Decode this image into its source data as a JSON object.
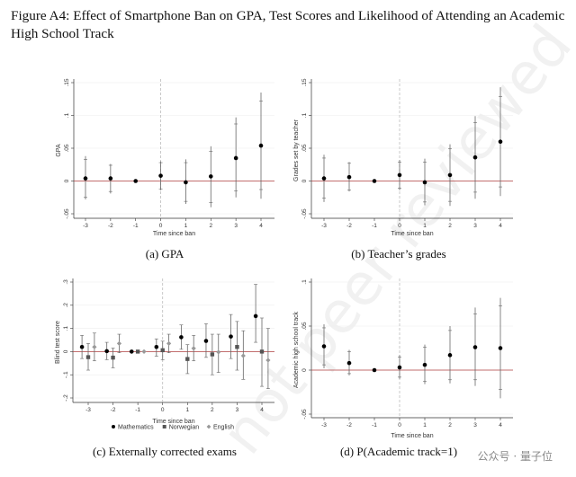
{
  "figure_title": "Figure A4: Effect of Smartphone Ban on GPA, Test Scores and Likelihood of Attending an Academic High School Track",
  "watermark": "not peer reviewed",
  "logo": "公众号 · 量子位",
  "colors": {
    "zero_line": "#b04040",
    "vline": "#bbbbbb",
    "ci": "#666666",
    "point": "#000000"
  },
  "chart_data": [
    {
      "type": "scatter",
      "id": "a",
      "caption": "(a) GPA",
      "ylabel": "GPA",
      "xlabel": "Time since ban",
      "x": [
        -3,
        -2,
        -1,
        0,
        1,
        2,
        3,
        4
      ],
      "xticks": [
        "-3",
        "-2",
        "-1",
        "0",
        "1",
        "2",
        "3",
        "4"
      ],
      "ylim": [
        -0.05,
        0.15
      ],
      "yticks": [
        -0.05,
        0,
        0.05,
        0.1,
        0.15
      ],
      "ytick_labels": [
        "-.05",
        "0",
        ".05",
        ".1",
        ".15"
      ],
      "series": [
        {
          "name": "GPA",
          "marker": "circle",
          "color": "#000000",
          "values": [
            0.004,
            0.004,
            0,
            0.008,
            -0.002,
            0.007,
            0.035,
            0.054
          ],
          "ci95": [
            [
              -0.028,
              0.038
            ],
            [
              -0.019,
              0.026
            ],
            [
              0,
              0
            ],
            [
              -0.014,
              0.03
            ],
            [
              -0.035,
              0.033
            ],
            [
              -0.04,
              0.053
            ],
            [
              -0.025,
              0.097
            ],
            [
              -0.027,
              0.135
            ]
          ],
          "ci90": [
            [
              -0.025,
              0.033
            ],
            [
              -0.016,
              0.024
            ],
            [
              0,
              0
            ],
            [
              -0.012,
              0.028
            ],
            [
              -0.031,
              0.028
            ],
            [
              -0.033,
              0.045
            ],
            [
              -0.015,
              0.087
            ],
            [
              -0.013,
              0.122
            ]
          ]
        }
      ]
    },
    {
      "type": "scatter",
      "id": "b",
      "caption": "(b) Teacher’s grades",
      "ylabel": "Grades set by teacher",
      "xlabel": "Time since ban",
      "x": [
        -3,
        -2,
        -1,
        0,
        1,
        2,
        3,
        4
      ],
      "xticks": [
        "-3",
        "-2",
        "-1",
        "0",
        "1",
        "2",
        "3",
        "4"
      ],
      "ylim": [
        -0.05,
        0.15
      ],
      "yticks": [
        -0.05,
        0,
        0.05,
        0.1,
        0.15
      ],
      "ytick_labels": [
        "-.05",
        "0",
        ".05",
        ".1",
        ".15"
      ],
      "series": [
        {
          "name": "Grades set by teacher",
          "marker": "circle",
          "color": "#000000",
          "values": [
            0.004,
            0.006,
            0,
            0.009,
            -0.002,
            0.009,
            0.036,
            0.06
          ],
          "ci95": [
            [
              -0.032,
              0.04
            ],
            [
              -0.016,
              0.029
            ],
            [
              0,
              0
            ],
            [
              -0.014,
              0.032
            ],
            [
              -0.037,
              0.034
            ],
            [
              -0.038,
              0.056
            ],
            [
              -0.027,
              0.099
            ],
            [
              -0.023,
              0.143
            ]
          ],
          "ci90": [
            [
              -0.026,
              0.035
            ],
            [
              -0.014,
              0.027
            ],
            [
              0,
              0
            ],
            [
              -0.011,
              0.029
            ],
            [
              -0.032,
              0.029
            ],
            [
              -0.031,
              0.049
            ],
            [
              -0.017,
              0.089
            ],
            [
              -0.009,
              0.129
            ]
          ]
        }
      ]
    },
    {
      "type": "scatter",
      "id": "c",
      "caption": "(c) Externally corrected exams",
      "ylabel": "Blind test score",
      "xlabel": "Time since ban",
      "x": [
        -3,
        -2,
        -1,
        0,
        1,
        2,
        3,
        4
      ],
      "xticks": [
        "-3",
        "-2",
        "-1",
        "0",
        "1",
        "2",
        "3",
        "4"
      ],
      "ylim": [
        -0.2,
        0.3
      ],
      "yticks": [
        -0.2,
        -0.1,
        0,
        0.1,
        0.2,
        0.3
      ],
      "ytick_labels": [
        "-.2",
        "-.1",
        "0",
        ".1",
        ".2",
        ".3"
      ],
      "legend": "bottom",
      "series": [
        {
          "name": "Mathematics",
          "marker": "circle",
          "color": "#000000",
          "offset": -0.25,
          "values": [
            0.02,
            0.002,
            0,
            0.02,
            0.062,
            0.046,
            0.065,
            0.153
          ],
          "ci95": [
            [
              -0.03,
              0.07
            ],
            [
              -0.035,
              0.04
            ],
            [
              0,
              0
            ],
            [
              -0.02,
              0.055
            ],
            [
              0.01,
              0.115
            ],
            [
              -0.025,
              0.12
            ],
            [
              -0.03,
              0.16
            ],
            [
              0.04,
              0.29
            ]
          ]
        },
        {
          "name": "Norwegian",
          "marker": "square",
          "color": "#555555",
          "offset": 0,
          "values": [
            -0.024,
            -0.026,
            0,
            0.006,
            -0.032,
            -0.012,
            0.02,
            0
          ],
          "ci95": [
            [
              -0.08,
              0.035
            ],
            [
              -0.07,
              0.015
            ],
            [
              0,
              0
            ],
            [
              -0.035,
              0.045
            ],
            [
              -0.095,
              0.03
            ],
            [
              -0.1,
              0.075
            ],
            [
              -0.08,
              0.13
            ],
            [
              -0.15,
              0.145
            ]
          ]
        },
        {
          "name": "English",
          "marker": "diamond",
          "color": "#999999",
          "offset": 0.25,
          "values": [
            0.02,
            0.035,
            0,
            0.035,
            0.014,
            -0.002,
            -0.018,
            -0.037
          ],
          "ci95": [
            [
              -0.04,
              0.08
            ],
            [
              -0.005,
              0.075
            ],
            [
              0,
              0
            ],
            [
              -0.005,
              0.075
            ],
            [
              -0.04,
              0.07
            ],
            [
              -0.09,
              0.075
            ],
            [
              -0.12,
              0.09
            ],
            [
              -0.16,
              0.1
            ]
          ]
        }
      ]
    },
    {
      "type": "scatter",
      "id": "d",
      "caption": "(d) P(Academic track=1)",
      "ylabel": "Academic high school track",
      "xlabel": "Time since ban",
      "x": [
        -3,
        -2,
        -1,
        0,
        1,
        2,
        3,
        4
      ],
      "xticks": [
        "-3",
        "-2",
        "-1",
        "0",
        "1",
        "2",
        "3",
        "4"
      ],
      "ylim": [
        -0.05,
        0.1
      ],
      "yticks": [
        -0.05,
        0,
        0.05,
        0.1
      ],
      "ytick_labels": [
        "-.05",
        "0",
        ".05",
        ".1"
      ],
      "series": [
        {
          "name": "Academic high school track",
          "marker": "circle",
          "color": "#000000",
          "values": [
            0.027,
            0.008,
            0,
            0.003,
            0.006,
            0.017,
            0.026,
            0.025
          ],
          "ci95": [
            [
              0.002,
              0.052
            ],
            [
              -0.006,
              0.023
            ],
            [
              0,
              0
            ],
            [
              -0.01,
              0.017
            ],
            [
              -0.016,
              0.029
            ],
            [
              -0.015,
              0.05
            ],
            [
              -0.018,
              0.071
            ],
            [
              -0.032,
              0.082
            ]
          ],
          "ci90": [
            [
              0.006,
              0.048
            ],
            [
              -0.004,
              0.021
            ],
            [
              0,
              0
            ],
            [
              -0.008,
              0.015
            ],
            [
              -0.013,
              0.026
            ],
            [
              -0.011,
              0.045
            ],
            [
              -0.011,
              0.064
            ],
            [
              -0.022,
              0.073
            ]
          ]
        }
      ]
    }
  ]
}
